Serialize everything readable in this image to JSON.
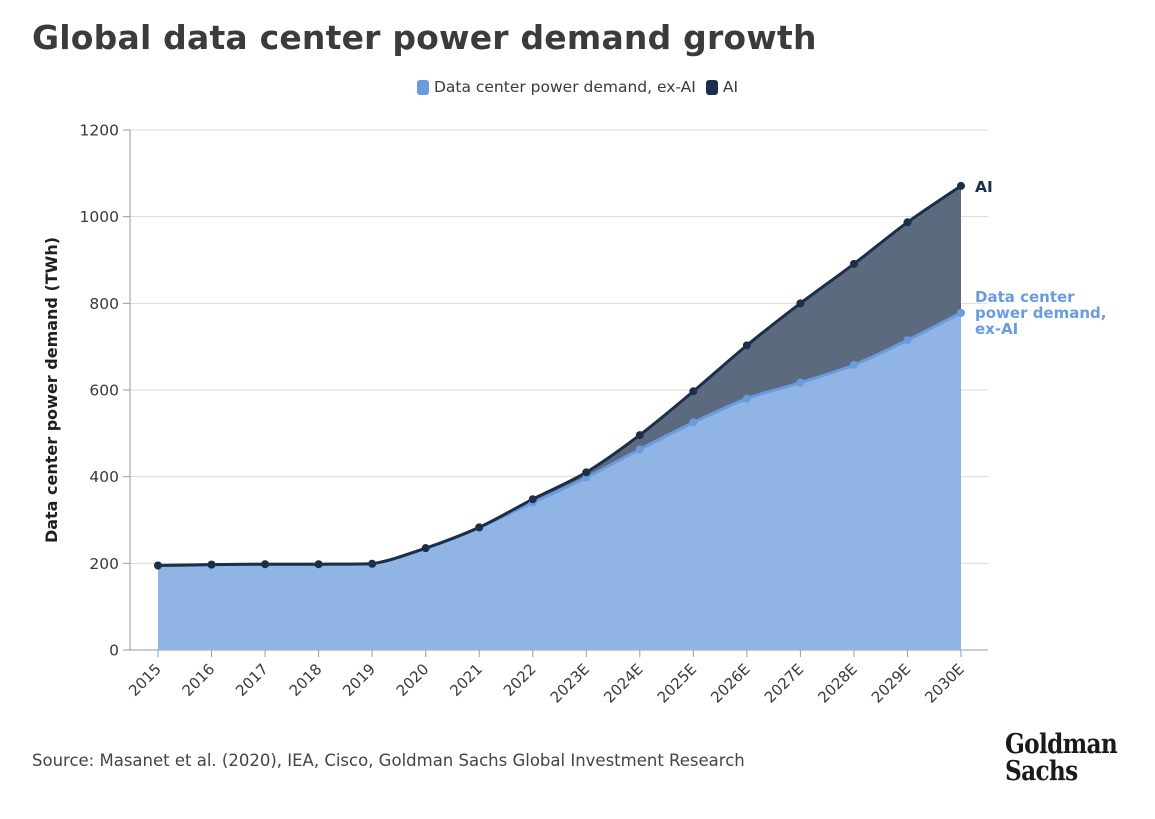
{
  "chart_data": {
    "type": "area",
    "title": "Global data center power demand growth",
    "ylabel": "Data center power demand (TWh)",
    "xlabel": "",
    "ylim": [
      0,
      1200
    ],
    "yticks": [
      0,
      200,
      400,
      600,
      800,
      1000,
      1200
    ],
    "grid": true,
    "legend_position": "top-center",
    "x": [
      "2015",
      "2016",
      "2017",
      "2018",
      "2019",
      "2020",
      "2021",
      "2022",
      "2023E",
      "2024E",
      "2025E",
      "2026E",
      "2027E",
      "2028E",
      "2029E",
      "2030E"
    ],
    "series": [
      {
        "name": "Data center power demand, ex-AI",
        "color": "#6a9be0",
        "fill": "#90b4e3",
        "end_label": "Data center power demand, ex-AI",
        "values": [
          195,
          197,
          198,
          198,
          199,
          235,
          283,
          340,
          398,
          463,
          525,
          580,
          617,
          658,
          715,
          778
        ]
      },
      {
        "name": "AI",
        "color": "#1c2f4a",
        "fill": "#5b6a7e",
        "end_label": "AI",
        "values": [
          195,
          197,
          198,
          198,
          199,
          235,
          283,
          348,
          410,
          496,
          597,
          703,
          800,
          891,
          987,
          1071
        ]
      }
    ]
  },
  "source": "Source: Masanet et al. (2020), IEA, Cisco, Goldman Sachs Global Investment Research",
  "logo": {
    "line1": "Goldman",
    "line2": "Sachs"
  }
}
